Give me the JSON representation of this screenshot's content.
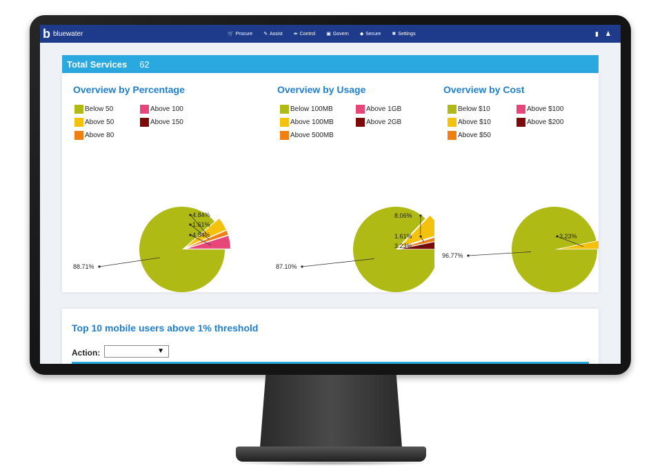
{
  "app": {
    "brand_logo": "b",
    "brand_name": "bluewater",
    "nav": [
      {
        "label": "Procure",
        "icon": "cart-icon",
        "glyph": "🛒"
      },
      {
        "label": "Assist",
        "icon": "pencil-icon",
        "glyph": "✎"
      },
      {
        "label": "Control",
        "icon": "sliders-icon",
        "glyph": "⇹"
      },
      {
        "label": "Govern",
        "icon": "doc-icon",
        "glyph": "▣"
      },
      {
        "label": "Secure",
        "icon": "shield-icon",
        "glyph": "◆"
      },
      {
        "label": "Settings",
        "icon": "gear-icon",
        "glyph": "✱"
      }
    ],
    "right_icons": [
      "book-icon",
      "user-icon"
    ]
  },
  "total": {
    "label": "Total Services",
    "value": "62"
  },
  "charts": [
    {
      "title": "Overview by Percentage",
      "legend": [
        {
          "label": "Below 50",
          "color": "#afba14"
        },
        {
          "label": "Above 100",
          "color": "#e8457a"
        },
        {
          "label": "Above 50",
          "color": "#f4c20d"
        },
        {
          "label": "Above 150",
          "color": "#7d0a0a"
        },
        {
          "label": "Above 80",
          "color": "#f07f13"
        }
      ],
      "slices": [
        {
          "label": "Below 50",
          "value": 88.71,
          "text": "88.71%",
          "color": "#afba14"
        },
        {
          "label": "Above 50",
          "value": 4.84,
          "text": "4.84%",
          "color": "#f4c20d"
        },
        {
          "label": "Above 80",
          "value": 1.61,
          "text": "1.61%",
          "color": "#f07f13"
        },
        {
          "label": "Above 100",
          "value": 4.84,
          "text": "4.84%",
          "color": "#e8457a"
        }
      ]
    },
    {
      "title": "Overview by Usage",
      "legend": [
        {
          "label": "Below 100MB",
          "color": "#afba14"
        },
        {
          "label": "Above 1GB",
          "color": "#e8457a"
        },
        {
          "label": "Above 100MB",
          "color": "#f4c20d"
        },
        {
          "label": "Above 2GB",
          "color": "#7d0a0a"
        },
        {
          "label": "Above 500MB",
          "color": "#f07f13"
        }
      ],
      "slices": [
        {
          "label": "Below 100MB",
          "value": 87.1,
          "text": "87.10%",
          "color": "#afba14"
        },
        {
          "label": "Above 100MB",
          "value": 8.06,
          "text": "8.06%",
          "color": "#f4c20d"
        },
        {
          "label": "Above 500MB",
          "value": 1.61,
          "text": "1.61%",
          "color": "#f07f13"
        },
        {
          "label": "Above 2GB",
          "value": 3.23,
          "text": "3.23%",
          "color": "#7d0a0a"
        }
      ]
    },
    {
      "title": "Overview by Cost",
      "legend": [
        {
          "label": "Below $10",
          "color": "#afba14"
        },
        {
          "label": "Above $100",
          "color": "#e8457a"
        },
        {
          "label": "Above $10",
          "color": "#f4c20d"
        },
        {
          "label": "Above $200",
          "color": "#7d0a0a"
        },
        {
          "label": "Above $50",
          "color": "#f07f13"
        }
      ],
      "slices": [
        {
          "label": "Below $10",
          "value": 96.77,
          "text": "96.77%",
          "color": "#afba14"
        },
        {
          "label": "Above $10",
          "value": 3.23,
          "text": "3.23%",
          "color": "#f4c20d"
        }
      ]
    }
  ],
  "bottom": {
    "title": "Top 10 mobile users above 1% threshold",
    "action_label": "Action:",
    "action_value": "",
    "action_arrow": "▼"
  }
}
